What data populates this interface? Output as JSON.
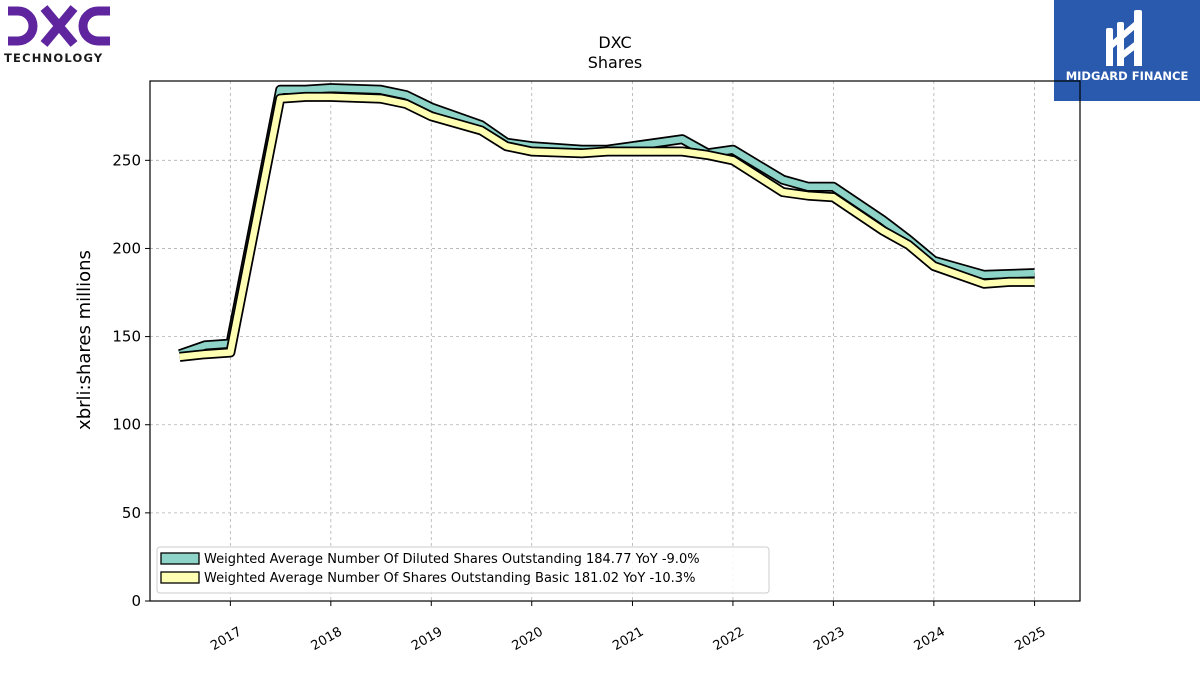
{
  "logos": {
    "left_brand": "DXC",
    "left_subtitle": "TECHNOLOGY",
    "right_brand": "MIDGARD FINANCE"
  },
  "chart_data": {
    "type": "area",
    "title": "DXC",
    "subtitle": "Shares",
    "xlabel": "",
    "ylabel": "xbrli:shares millions",
    "ylim": [
      0,
      295
    ],
    "yticks": [
      0,
      50,
      100,
      150,
      200,
      250
    ],
    "xlim": [
      "2016-03-15",
      "2025-06-15"
    ],
    "xticks": [
      "2017",
      "2018",
      "2019",
      "2020",
      "2021",
      "2022",
      "2023",
      "2024",
      "2025"
    ],
    "grid": true,
    "legend_position": "lower-left",
    "x": [
      "2016-07-01",
      "2016-10-01",
      "2017-01-01",
      "2017-07-01",
      "2017-10-01",
      "2018-01-01",
      "2018-07-01",
      "2018-10-01",
      "2019-01-01",
      "2019-07-01",
      "2019-10-01",
      "2020-01-01",
      "2020-07-01",
      "2020-10-01",
      "2021-01-01",
      "2021-07-01",
      "2021-10-01",
      "2022-01-01",
      "2022-07-01",
      "2022-10-01",
      "2023-01-01",
      "2023-07-01",
      "2023-10-01",
      "2024-01-01",
      "2024-07-01",
      "2024-10-01",
      "2025-01-01"
    ],
    "series": [
      {
        "name": "Weighted Average Number Of Diluted Shares Outstanding",
        "legend_label": "Weighted Average Number Of Diluted Shares Outstanding  184.77 YoY -9.0%",
        "color": "#8dd3c7",
        "values": [
          140,
          145,
          146,
          290,
          290,
          291,
          290,
          287,
          280,
          270,
          260,
          258,
          256,
          256,
          258,
          262,
          254,
          256,
          239,
          235,
          235,
          216,
          205,
          193,
          185,
          185.5,
          186
        ]
      },
      {
        "name": "Weighted Average Number Of Shares Outstanding Basic",
        "legend_label": "Weighted Average Number Of Shares Outstanding Basic  181.02 YoY -10.3%",
        "color": "#ffffb3",
        "values": [
          138.5,
          140,
          141,
          285,
          286,
          286,
          285,
          282,
          275,
          267,
          258,
          255,
          254,
          255,
          255,
          255,
          253,
          250,
          232,
          230,
          229,
          210,
          202,
          190,
          180,
          181,
          181
        ]
      }
    ]
  }
}
